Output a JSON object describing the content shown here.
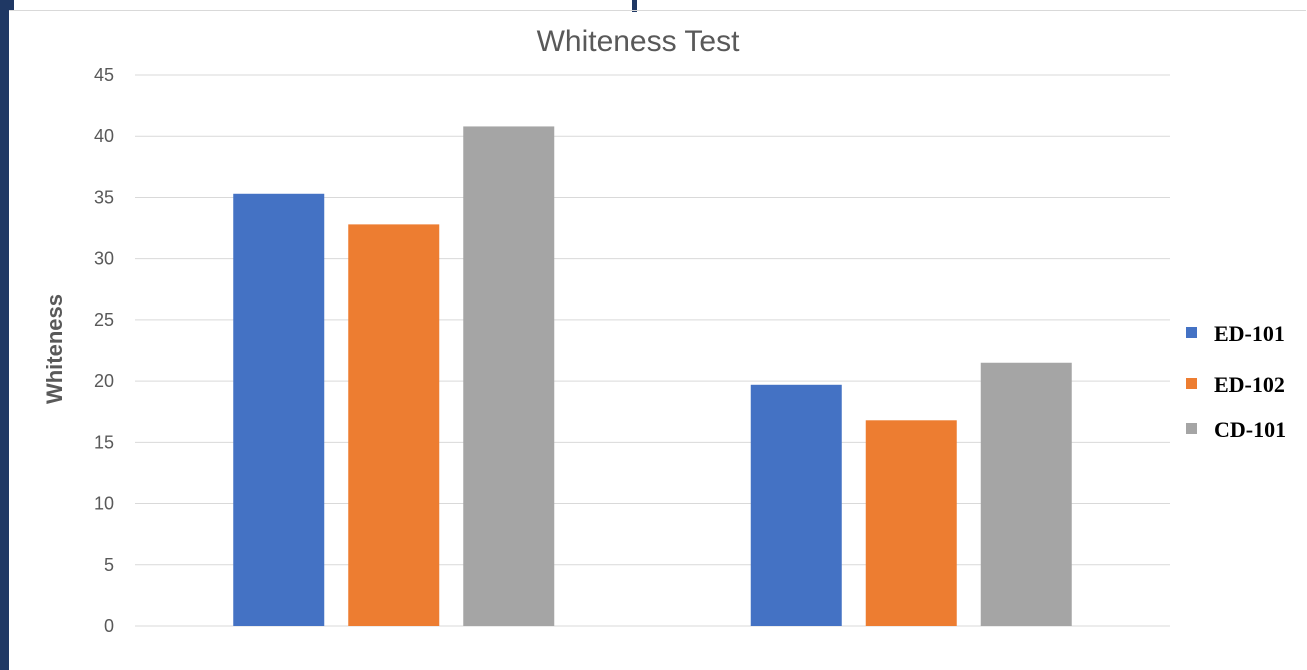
{
  "chart_data": {
    "type": "bar",
    "title": "Whiteness Test",
    "xlabel": "",
    "ylabel": "Whiteness",
    "ylim": [
      0,
      45
    ],
    "yticks": [
      0,
      5,
      10,
      15,
      20,
      25,
      30,
      35,
      40,
      45
    ],
    "grid": true,
    "legend_position": "right",
    "categories": [
      "",
      ""
    ],
    "series": [
      {
        "name": "ED-101",
        "color": "#4472c4",
        "values": [
          35.3,
          19.7
        ]
      },
      {
        "name": "ED-102",
        "color": "#ed7d31",
        "values": [
          32.8,
          16.8
        ]
      },
      {
        "name": "CD-101",
        "color": "#a5a5a5",
        "values": [
          40.8,
          21.5
        ]
      }
    ]
  }
}
